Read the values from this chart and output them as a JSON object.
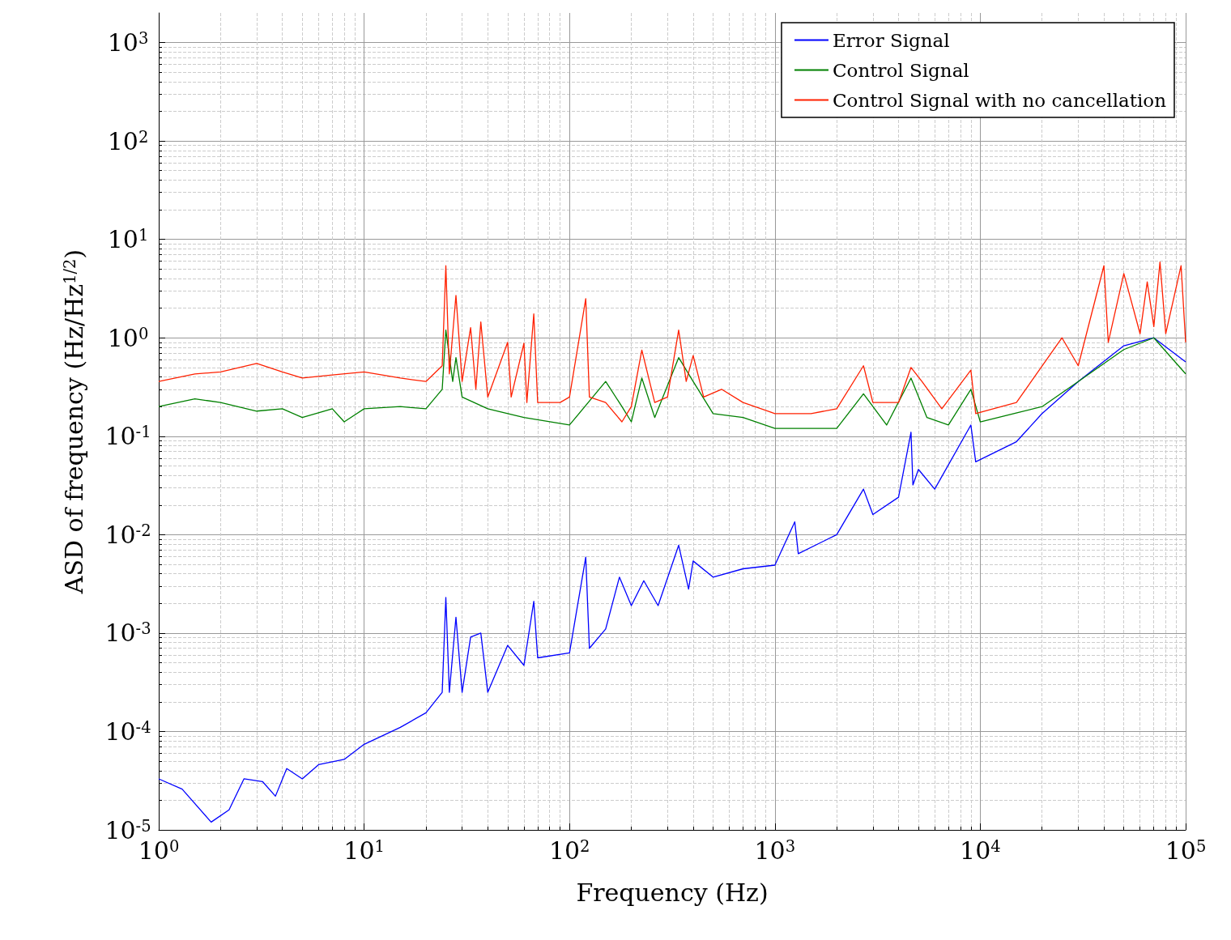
{
  "chart_data": {
    "type": "line",
    "xlabel": "Frequency (Hz)",
    "ylabel": "ASD of frequency (Hz/Hz$^{1/2}$)",
    "log": "xy",
    "grid": true,
    "legend": "top right",
    "marker": "none",
    "line_style": "solid",
    "xlim": [
      1,
      100000
    ],
    "ylim": [
      1e-05,
      2000
    ],
    "xticks": [
      {
        "value": 1,
        "label": "10$^{0}$"
      },
      {
        "value": 10,
        "label": "10$^{1}$"
      },
      {
        "value": 100,
        "label": "10$^{2}$"
      },
      {
        "value": 1000,
        "label": "10$^{3}$"
      },
      {
        "value": 10000,
        "label": "10$^{4}$"
      },
      {
        "value": 100000,
        "label": "10$^{5}$"
      }
    ],
    "yticks": [
      {
        "value": 1e-05,
        "label": "10$^{-5}$"
      },
      {
        "value": 0.0001,
        "label": "10$^{-4}$"
      },
      {
        "value": 0.001,
        "label": "10$^{-3}$"
      },
      {
        "value": 0.01,
        "label": "10$^{-2}$"
      },
      {
        "value": 0.1,
        "label": "10$^{-1}$"
      },
      {
        "value": 1,
        "label": "10$^{0}$"
      },
      {
        "value": 10,
        "label": "10$^{1}$"
      },
      {
        "value": 100,
        "label": "10$^{2}$"
      },
      {
        "value": 1000,
        "label": "10$^{3}$"
      }
    ],
    "series": [
      {
        "name": "Error Signal",
        "color": "#0000ff",
        "x": [
          1,
          1.3,
          1.8,
          2.2,
          2.6,
          3.2,
          3.7,
          4.2,
          5,
          6,
          8,
          10,
          15,
          20,
          24,
          25,
          26,
          28,
          30,
          33,
          37,
          40,
          50,
          60,
          67,
          70,
          100,
          120,
          125,
          150,
          175,
          200,
          230,
          270,
          340,
          380,
          400,
          500,
          700,
          1000,
          1250,
          1300,
          2000,
          2700,
          3000,
          4000,
          4600,
          4700,
          5000,
          6000,
          9000,
          9500,
          15000,
          20000,
          30000,
          50000,
          70000,
          100000
        ],
        "values": [
          3.3e-05,
          2.6e-05,
          1.2e-05,
          1.6e-05,
          3.3e-05,
          3.1e-05,
          2.2e-05,
          4.2e-05,
          3.3e-05,
          4.6e-05,
          5.2e-05,
          7.4e-05,
          0.00011,
          0.000155,
          0.00025,
          0.0023,
          0.00025,
          0.00145,
          0.00025,
          0.00091,
          0.001,
          0.00025,
          0.00075,
          0.00047,
          0.0021,
          0.00056,
          0.00063,
          0.0059,
          0.0007,
          0.0011,
          0.0037,
          0.0019,
          0.0034,
          0.0019,
          0.0078,
          0.0028,
          0.0054,
          0.0037,
          0.0045,
          0.0049,
          0.0135,
          0.0064,
          0.01,
          0.029,
          0.016,
          0.024,
          0.11,
          0.032,
          0.046,
          0.029,
          0.13,
          0.055,
          0.088,
          0.17,
          0.36,
          0.83,
          1,
          0.57
        ]
      },
      {
        "name": "Control Signal",
        "color": "#008000",
        "x": [
          1,
          1.5,
          2,
          3,
          4,
          5,
          7,
          8,
          10,
          15,
          20,
          24,
          25,
          27,
          28,
          30,
          40,
          60,
          100,
          150,
          180,
          200,
          225,
          260,
          340,
          400,
          500,
          700,
          1000,
          2000,
          2700,
          3500,
          4600,
          5500,
          7000,
          9000,
          10000,
          20000,
          30000,
          50000,
          70000,
          100000
        ],
        "values": [
          0.2,
          0.24,
          0.22,
          0.18,
          0.19,
          0.155,
          0.19,
          0.14,
          0.19,
          0.2,
          0.19,
          0.3,
          1.2,
          0.36,
          0.63,
          0.25,
          0.19,
          0.155,
          0.13,
          0.36,
          0.2,
          0.14,
          0.39,
          0.155,
          0.63,
          0.36,
          0.17,
          0.155,
          0.12,
          0.12,
          0.27,
          0.13,
          0.39,
          0.155,
          0.13,
          0.3,
          0.14,
          0.2,
          0.36,
          0.76,
          1,
          0.43
        ]
      },
      {
        "name": "Control Signal with no cancellation",
        "color": "#ff2000",
        "x": [
          1,
          1.5,
          2,
          3,
          4,
          5,
          7,
          10,
          15,
          20,
          24,
          25,
          26,
          28,
          30,
          33,
          35,
          37,
          40,
          50,
          52,
          60,
          62,
          67,
          70,
          90,
          100,
          120,
          125,
          150,
          180,
          200,
          225,
          260,
          300,
          340,
          370,
          400,
          450,
          550,
          700,
          1000,
          1500,
          2000,
          2700,
          3000,
          4000,
          4600,
          5200,
          6500,
          9000,
          9500,
          15000,
          25000,
          30000,
          40000,
          42000,
          50000,
          60000,
          65000,
          70000,
          75000,
          80000,
          95000,
          100000
        ],
        "values": [
          0.36,
          0.43,
          0.45,
          0.55,
          0.45,
          0.39,
          0.42,
          0.45,
          0.39,
          0.36,
          0.52,
          5.4,
          0.43,
          2.7,
          0.36,
          1.27,
          0.3,
          1.45,
          0.25,
          0.9,
          0.25,
          0.88,
          0.22,
          1.75,
          0.22,
          0.22,
          0.25,
          2.5,
          0.25,
          0.22,
          0.14,
          0.2,
          0.75,
          0.22,
          0.25,
          1.2,
          0.36,
          0.66,
          0.25,
          0.3,
          0.22,
          0.17,
          0.17,
          0.19,
          0.52,
          0.22,
          0.22,
          0.5,
          0.36,
          0.19,
          0.47,
          0.17,
          0.22,
          1,
          0.52,
          5.4,
          0.9,
          4.5,
          1.1,
          3.7,
          1.3,
          5.9,
          1.1,
          5.4,
          0.9
        ]
      }
    ]
  }
}
